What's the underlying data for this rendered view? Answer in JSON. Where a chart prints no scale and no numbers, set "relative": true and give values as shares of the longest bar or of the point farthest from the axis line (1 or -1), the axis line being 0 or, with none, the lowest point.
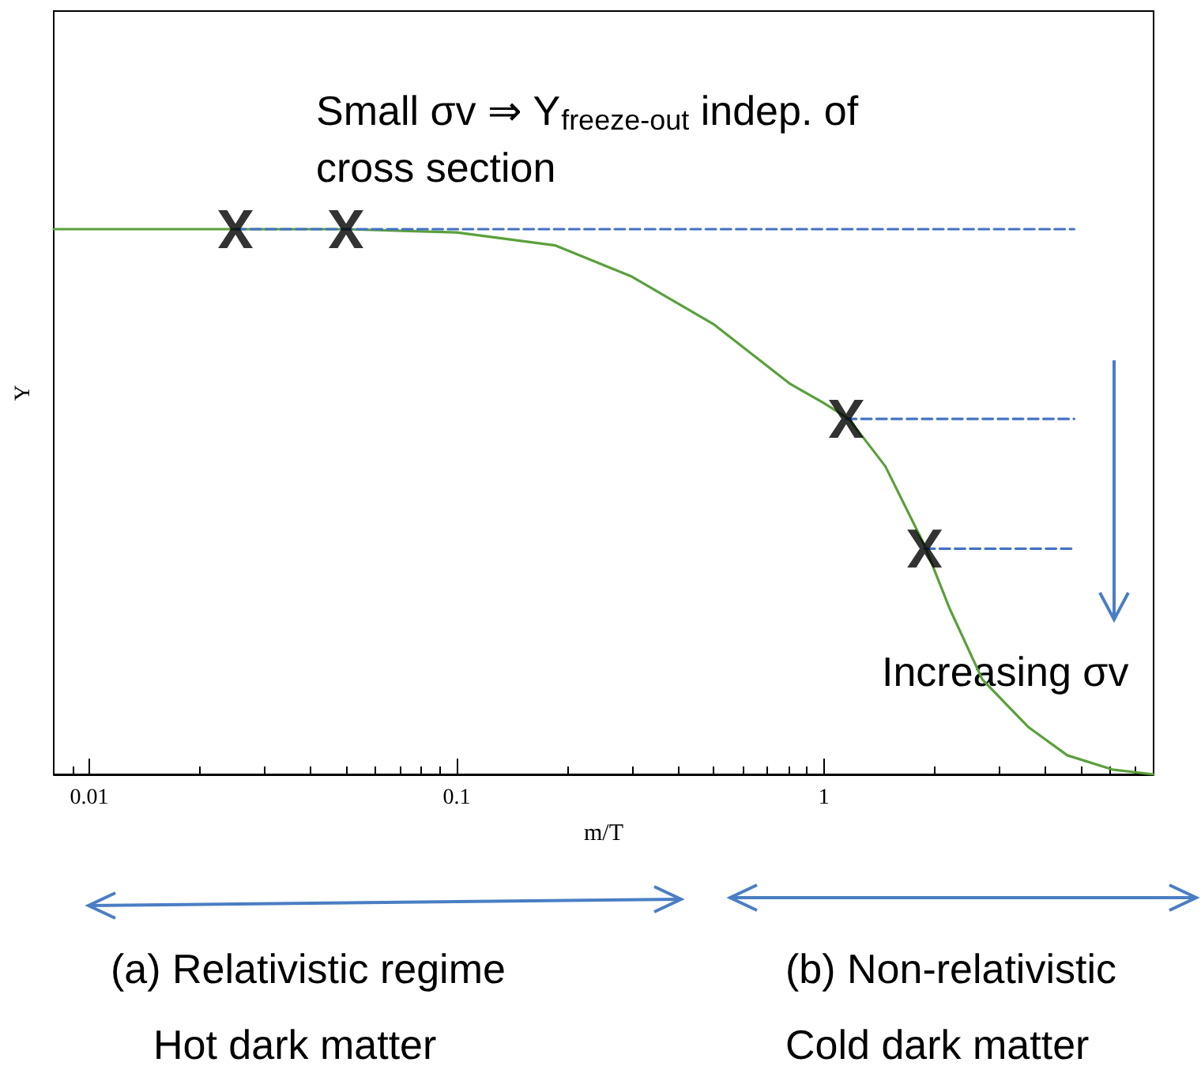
{
  "chart_data": {
    "type": "line",
    "xlabel": "m/T",
    "ylabel": "Y",
    "relative": true,
    "log": "x",
    "xlim": [
      0.008,
      7.9
    ],
    "xticks": [
      0.01,
      0.1,
      1
    ],
    "series": [
      {
        "color": "#5aa03c",
        "x": [
          0.008,
          0.02,
          0.05,
          0.1,
          0.186,
          0.3,
          0.5,
          0.81,
          1,
          1.17,
          1.47,
          1.88,
          2.2,
          2.7,
          3.6,
          4.6,
          6.1,
          7.9
        ],
        "values": [
          1,
          1,
          1,
          0.994,
          0.97,
          0.913,
          0.826,
          0.716,
          0.681,
          0.652,
          0.565,
          0.42,
          0.304,
          0.174,
          0.087,
          0.035,
          0.009,
          0
        ]
      },
      {
        "color": "#4472c4",
        "line_style": "dashed",
        "x": [
          0.025,
          4.8
        ],
        "values": [
          1,
          1
        ]
      },
      {
        "color": "#4472c4",
        "line_style": "dashed",
        "x": [
          1.15,
          4.8
        ],
        "values": [
          0.652,
          0.652
        ]
      },
      {
        "color": "#4472c4",
        "line_style": "dashed",
        "x": [
          1.88,
          4.8
        ],
        "values": [
          0.414,
          0.414
        ]
      },
      {
        "type": "scatter",
        "marker": "cross",
        "color": "#000000",
        "x": [
          0.025,
          0.05,
          1.15,
          1.88
        ],
        "values": [
          1,
          1,
          0.652,
          0.414
        ]
      }
    ],
    "annotations": [
      "Small σv ⇒ Y$_{freeze-out}$ indep. of\ncross section",
      "Increasing σv",
      "(a) Relativistic regime",
      "(b) Non-relativistic",
      "Hot dark matter",
      "Cold dark matter"
    ]
  }
}
